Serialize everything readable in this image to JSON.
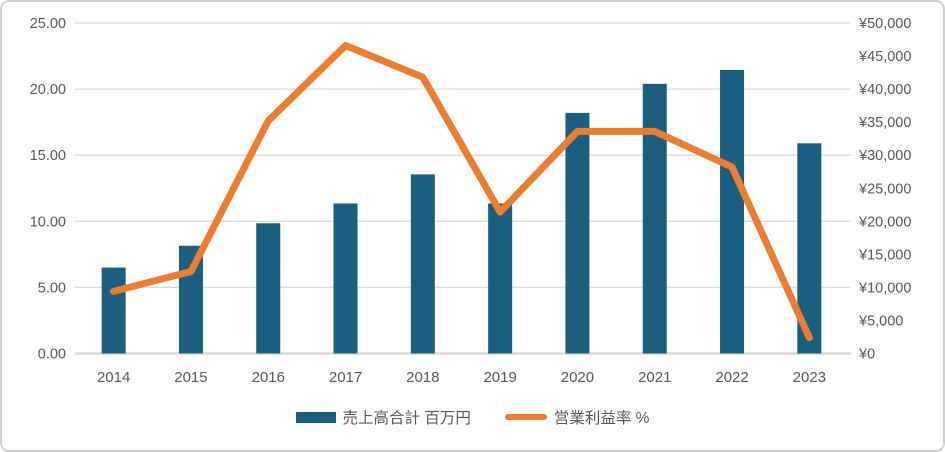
{
  "chart_data": {
    "type": "combo-bar-line",
    "categories": [
      "2014",
      "2015",
      "2016",
      "2017",
      "2018",
      "2019",
      "2020",
      "2021",
      "2022",
      "2023"
    ],
    "series": [
      {
        "name": "売上高合計 百万円",
        "type": "bar",
        "axis": "right",
        "color": "#1A5F80",
        "values": [
          13000,
          16300,
          19700,
          22700,
          27100,
          22700,
          36400,
          40800,
          42900,
          31800
        ]
      },
      {
        "name": "営業利益率 %",
        "type": "line",
        "axis": "left",
        "color": "#ED7D31",
        "values": [
          4.7,
          6.2,
          17.6,
          23.3,
          20.9,
          10.7,
          16.8,
          16.8,
          14.1,
          1.2
        ]
      }
    ],
    "left_axis": {
      "min": 0,
      "max": 25,
      "step": 5,
      "tick_labels": [
        "0.00",
        "5.00",
        "10.00",
        "15.00",
        "20.00",
        "25.00"
      ]
    },
    "right_axis": {
      "min": 0,
      "max": 50000,
      "step": 5000,
      "tick_labels": [
        "¥0",
        "¥5,000",
        "¥10,000",
        "¥15,000",
        "¥20,000",
        "¥25,000",
        "¥30,000",
        "¥35,000",
        "¥40,000",
        "¥45,000",
        "¥50,000"
      ]
    },
    "grid": true,
    "legend_position": "bottom"
  },
  "legend": {
    "items": [
      {
        "label": "売上高合計 百万円",
        "swatch": "bar"
      },
      {
        "label": "営業利益率 %",
        "swatch": "line"
      }
    ]
  },
  "colors": {
    "bar": "#1A5F80",
    "line": "#ED7D31",
    "gridline": "#DCDCDC",
    "axis_line": "#D9D9D9",
    "tick_text": "#595959",
    "frame_border": "#CFCFCF",
    "background": "#FFFFFF"
  }
}
